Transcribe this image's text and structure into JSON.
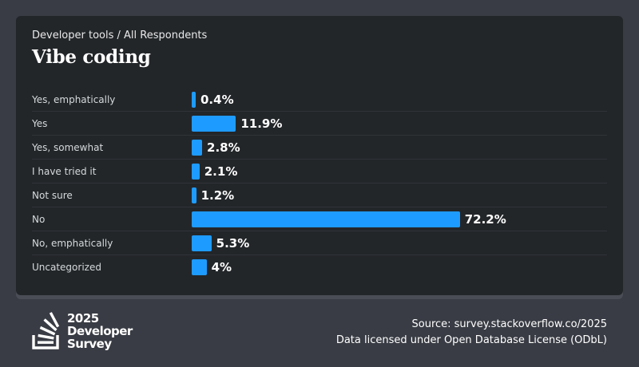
{
  "header": {
    "breadcrumb": "Developer tools / All Respondents",
    "title": "Vibe coding"
  },
  "chart_data": {
    "type": "bar",
    "orientation": "horizontal",
    "categories": [
      "Yes, emphatically",
      "Yes",
      "Yes, somewhat",
      "I have tried it",
      "Not sure",
      "No",
      "No, emphatically",
      "Uncategorized"
    ],
    "values": [
      0.4,
      11.9,
      2.8,
      2.1,
      1.2,
      72.2,
      5.3,
      4
    ],
    "value_labels": [
      "0.4%",
      "11.9%",
      "2.8%",
      "2.1%",
      "1.2%",
      "72.2%",
      "5.3%",
      "4%"
    ],
    "title": "Vibe coding",
    "xlabel": "",
    "ylabel": "",
    "xlim": [
      0,
      100
    ],
    "grid": false,
    "bar_color": "#1e9bff"
  },
  "footer": {
    "logo_lines": [
      "2025",
      "Developer",
      "Survey"
    ],
    "source_line": "Source: survey.stackoverflow.co/2025",
    "license_line": "Data licensed under Open Database License (ODbL)"
  },
  "colors": {
    "page_background": "#393c44",
    "card_background": "#232629",
    "bar": "#1e9bff",
    "text": "#ffffff"
  }
}
